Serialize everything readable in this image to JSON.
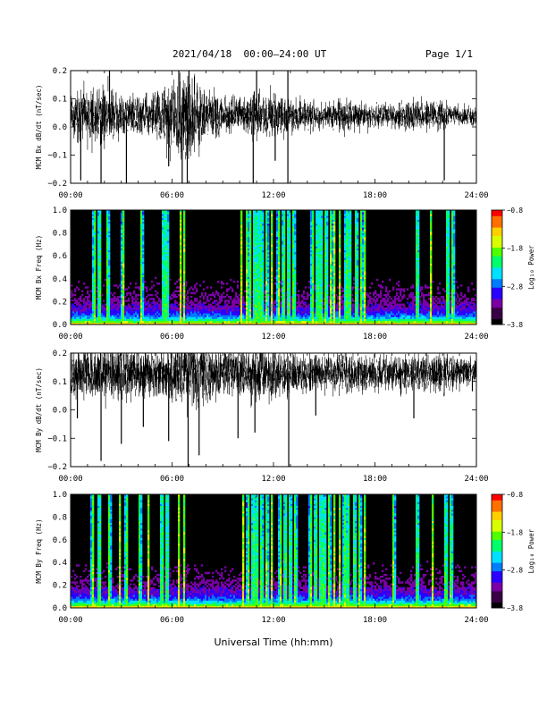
{
  "header": {
    "title": "2021/04/18  00:00–24:00 UT",
    "page_label": "Page 1/1"
  },
  "x_axis_title": "Universal Time (hh:mm)",
  "colors": {
    "background": "#ffffff",
    "spectrogram_background": "#000000",
    "trace": "#000000",
    "colormap": [
      "#000000",
      "#3a0045",
      "#7a00a6",
      "#2b00ff",
      "#007dff",
      "#00e0ff",
      "#00ff6a",
      "#50ff00",
      "#d8ff00",
      "#ffd000",
      "#ff7000",
      "#ff0000"
    ]
  },
  "chart_data": [
    {
      "type": "line",
      "ylabel": "MCM Bx dB/dt (nT/sec)",
      "xlim": [
        "00:00",
        "24:00"
      ],
      "ylim": [
        -0.2,
        0.2
      ],
      "x_tick_labels": [
        "00:00",
        "06:00",
        "12:00",
        "18:00",
        "24:00"
      ],
      "y_tick_labels": [
        "0.2",
        "0.1",
        "0.0",
        "−0.1",
        "−0.2"
      ],
      "y_tick_values": [
        0.2,
        0.1,
        0.0,
        -0.1,
        -0.2
      ],
      "baseline": 0.04,
      "description_of_series": "dense noisy dB/dt trace",
      "envelope": {
        "hours": [
          0,
          1,
          2,
          3,
          4,
          5,
          6,
          7,
          8,
          9,
          10,
          11,
          12,
          13,
          14,
          15,
          16,
          17,
          18,
          19,
          20,
          21,
          22,
          23,
          24
        ],
        "amplitude": [
          0.09,
          0.1,
          0.12,
          0.1,
          0.08,
          0.09,
          0.15,
          0.2,
          0.11,
          0.07,
          0.08,
          0.1,
          0.09,
          0.07,
          0.06,
          0.05,
          0.07,
          0.06,
          0.05,
          0.05,
          0.06,
          0.06,
          0.05,
          0.04,
          0.04
        ]
      },
      "spikes": [
        {
          "hour": 0.6,
          "value": -0.19
        },
        {
          "hour": 1.8,
          "value": -0.2
        },
        {
          "hour": 2.3,
          "value": 0.2
        },
        {
          "hour": 3.3,
          "value": -0.2
        },
        {
          "hour": 5.8,
          "value": -0.14
        },
        {
          "hour": 6.4,
          "value": 0.2
        },
        {
          "hour": 6.6,
          "value": -0.2
        },
        {
          "hour": 6.9,
          "value": -0.2
        },
        {
          "hour": 7.0,
          "value": 0.2
        },
        {
          "hour": 10.8,
          "value": -0.2
        },
        {
          "hour": 11.0,
          "value": 0.2
        },
        {
          "hour": 12.1,
          "value": -0.12
        },
        {
          "hour": 12.85,
          "value": 0.2
        },
        {
          "hour": 12.85,
          "value": -0.2
        },
        {
          "hour": 22.1,
          "value": -0.19
        }
      ]
    },
    {
      "type": "heatmap",
      "ylabel": "MCM Bx Freq (Hz)",
      "xlim": [
        "00:00",
        "24:00"
      ],
      "ylim": [
        0.0,
        1.0
      ],
      "x_tick_labels": [
        "00:00",
        "06:00",
        "12:00",
        "18:00",
        "24:00"
      ],
      "y_tick_labels": [
        "1.0",
        "0.8",
        "0.6",
        "0.4",
        "0.2",
        "0.0"
      ],
      "y_tick_values": [
        1.0,
        0.8,
        0.6,
        0.4,
        0.2,
        0.0
      ],
      "colorbar_label": "Log₁₀ Power",
      "colorbar_ticks": [
        "−0.8",
        "−1.8",
        "−2.8",
        "−3.8"
      ],
      "colorbar_tick_values": [
        -0.8,
        -1.8,
        -2.8,
        -3.8
      ],
      "clim": [
        -3.8,
        -0.8
      ],
      "broadband_bursts_hours": [
        1.4,
        1.7,
        2.2,
        3.1,
        4.2,
        5.5,
        5.7,
        6.5,
        6.7,
        10.1,
        10.4,
        10.6,
        10.9,
        11.1,
        11.3,
        11.6,
        11.9,
        12.3,
        12.6,
        12.9,
        13.2,
        14.3,
        14.6,
        14.8,
        15.1,
        15.4,
        15.6,
        15.9,
        16.3,
        16.5,
        16.9,
        17.2,
        17.4,
        20.5,
        21.3,
        22.3,
        22.6
      ]
    },
    {
      "type": "line",
      "ylabel": "MCM By dB/dt (nT/sec)",
      "xlim": [
        "00:00",
        "24:00"
      ],
      "ylim": [
        -0.2,
        0.2
      ],
      "x_tick_labels": [
        "00:00",
        "06:00",
        "12:00",
        "18:00",
        "24:00"
      ],
      "y_tick_labels": [
        "0.2",
        "0.1",
        "0.0",
        "−0.1",
        "−0.2"
      ],
      "y_tick_values": [
        0.2,
        0.1,
        0.0,
        -0.1,
        -0.2
      ],
      "baseline": 0.13,
      "description_of_series": "dense noisy dB/dt trace",
      "envelope": {
        "hours": [
          0,
          1,
          2,
          3,
          4,
          5,
          6,
          7,
          8,
          9,
          10,
          11,
          12,
          13,
          14,
          15,
          16,
          17,
          18,
          19,
          20,
          21,
          22,
          23,
          24
        ],
        "amplitude": [
          0.09,
          0.1,
          0.12,
          0.11,
          0.1,
          0.09,
          0.12,
          0.14,
          0.12,
          0.1,
          0.1,
          0.11,
          0.1,
          0.09,
          0.08,
          0.08,
          0.09,
          0.08,
          0.07,
          0.07,
          0.09,
          0.08,
          0.08,
          0.06,
          0.06
        ]
      },
      "spikes": [
        {
          "hour": 0.4,
          "value": -0.03
        },
        {
          "hour": 1.8,
          "value": -0.18
        },
        {
          "hour": 3.0,
          "value": -0.12
        },
        {
          "hour": 4.3,
          "value": -0.06
        },
        {
          "hour": 5.8,
          "value": -0.11
        },
        {
          "hour": 6.95,
          "value": -0.2
        },
        {
          "hour": 7.6,
          "value": -0.16
        },
        {
          "hour": 9.9,
          "value": -0.1
        },
        {
          "hour": 10.9,
          "value": -0.08
        },
        {
          "hour": 12.9,
          "value": -0.2
        },
        {
          "hour": 14.5,
          "value": -0.02
        },
        {
          "hour": 20.3,
          "value": -0.03
        }
      ]
    },
    {
      "type": "heatmap",
      "ylabel": "MCM By Freq (Hz)",
      "xlim": [
        "00:00",
        "24:00"
      ],
      "ylim": [
        0.0,
        1.0
      ],
      "x_tick_labels": [
        "00:00",
        "06:00",
        "12:00",
        "18:00",
        "24:00"
      ],
      "y_tick_labels": [
        "1.0",
        "0.8",
        "0.6",
        "0.4",
        "0.2",
        "0.0"
      ],
      "y_tick_values": [
        1.0,
        0.8,
        0.6,
        0.4,
        0.2,
        0.0
      ],
      "colorbar_label": "Log₁₀ Power",
      "colorbar_ticks": [
        "−0.8",
        "−1.8",
        "−2.8",
        "−3.8"
      ],
      "colorbar_tick_values": [
        -0.8,
        -1.8,
        -2.8,
        -3.8
      ],
      "clim": [
        -3.8,
        -0.8
      ],
      "broadband_bursts_hours": [
        1.3,
        1.7,
        2.3,
        2.9,
        3.3,
        4.1,
        4.6,
        5.4,
        5.7,
        6.4,
        6.7,
        10.2,
        10.5,
        10.8,
        11.0,
        11.3,
        11.6,
        11.9,
        12.4,
        12.7,
        13.0,
        13.3,
        14.2,
        14.5,
        14.8,
        15.0,
        15.3,
        15.6,
        15.9,
        16.2,
        16.4,
        16.8,
        17.1,
        17.4,
        19.1,
        20.5,
        21.4,
        22.2,
        22.5
      ]
    }
  ]
}
